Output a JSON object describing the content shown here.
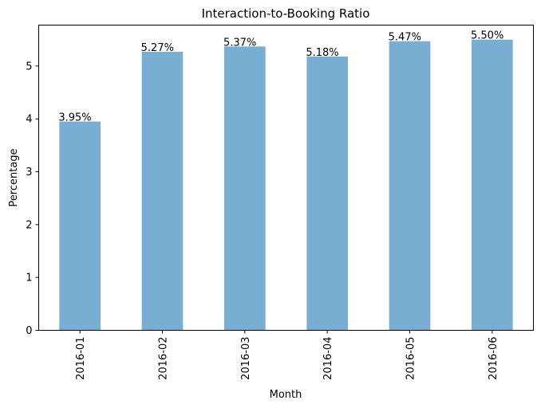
{
  "chart_data": {
    "type": "bar",
    "title": "Interaction-to-Booking Ratio",
    "xlabel": "Month",
    "ylabel": "Percentage",
    "categories": [
      "2016-01",
      "2016-02",
      "2016-03",
      "2016-04",
      "2016-05",
      "2016-06"
    ],
    "values": [
      3.95,
      5.27,
      5.37,
      5.18,
      5.47,
      5.5
    ],
    "data_labels": [
      "3.95%",
      "5.27%",
      "5.37%",
      "5.18%",
      "5.47%",
      "5.50%"
    ],
    "ylim": [
      0,
      5.775
    ],
    "yticks": [
      0,
      1,
      2,
      3,
      4,
      5
    ],
    "ytick_labels": [
      "0",
      "1",
      "2",
      "3",
      "4",
      "5"
    ],
    "bar_color": "#77aed2",
    "grid": false,
    "legend": "none"
  }
}
